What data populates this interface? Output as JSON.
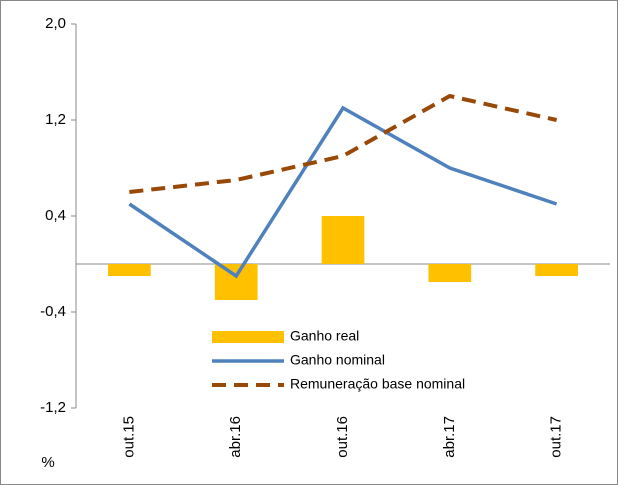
{
  "chart_data": {
    "type": "bar_line",
    "y_axis_label": "%",
    "categories": [
      "out.15",
      "abr.16",
      "out.16",
      "abr.17",
      "out.17"
    ],
    "series": [
      {
        "name": "Ganho real",
        "type": "bar",
        "color": "#ffc000",
        "values": [
          -0.1,
          -0.3,
          0.4,
          -0.15,
          -0.1
        ]
      },
      {
        "name": "Ganho nominal",
        "type": "line",
        "color": "#4f81bd",
        "values": [
          0.5,
          -0.1,
          1.3,
          0.8,
          0.5
        ]
      },
      {
        "name": "Remuneração base nominal",
        "type": "dashed_line",
        "color": "#984807",
        "values": [
          0.6,
          0.7,
          0.9,
          1.4,
          1.2
        ]
      }
    ],
    "ylim": [
      -1.2,
      2.0
    ],
    "yticks": [
      {
        "value": -1.2,
        "label": "-1,2"
      },
      {
        "value": -0.4,
        "label": "-0,4"
      },
      {
        "value": 0.4,
        "label": "0,4"
      },
      {
        "value": 1.2,
        "label": "1,2"
      },
      {
        "value": 2.0,
        "label": "2,0"
      }
    ]
  }
}
